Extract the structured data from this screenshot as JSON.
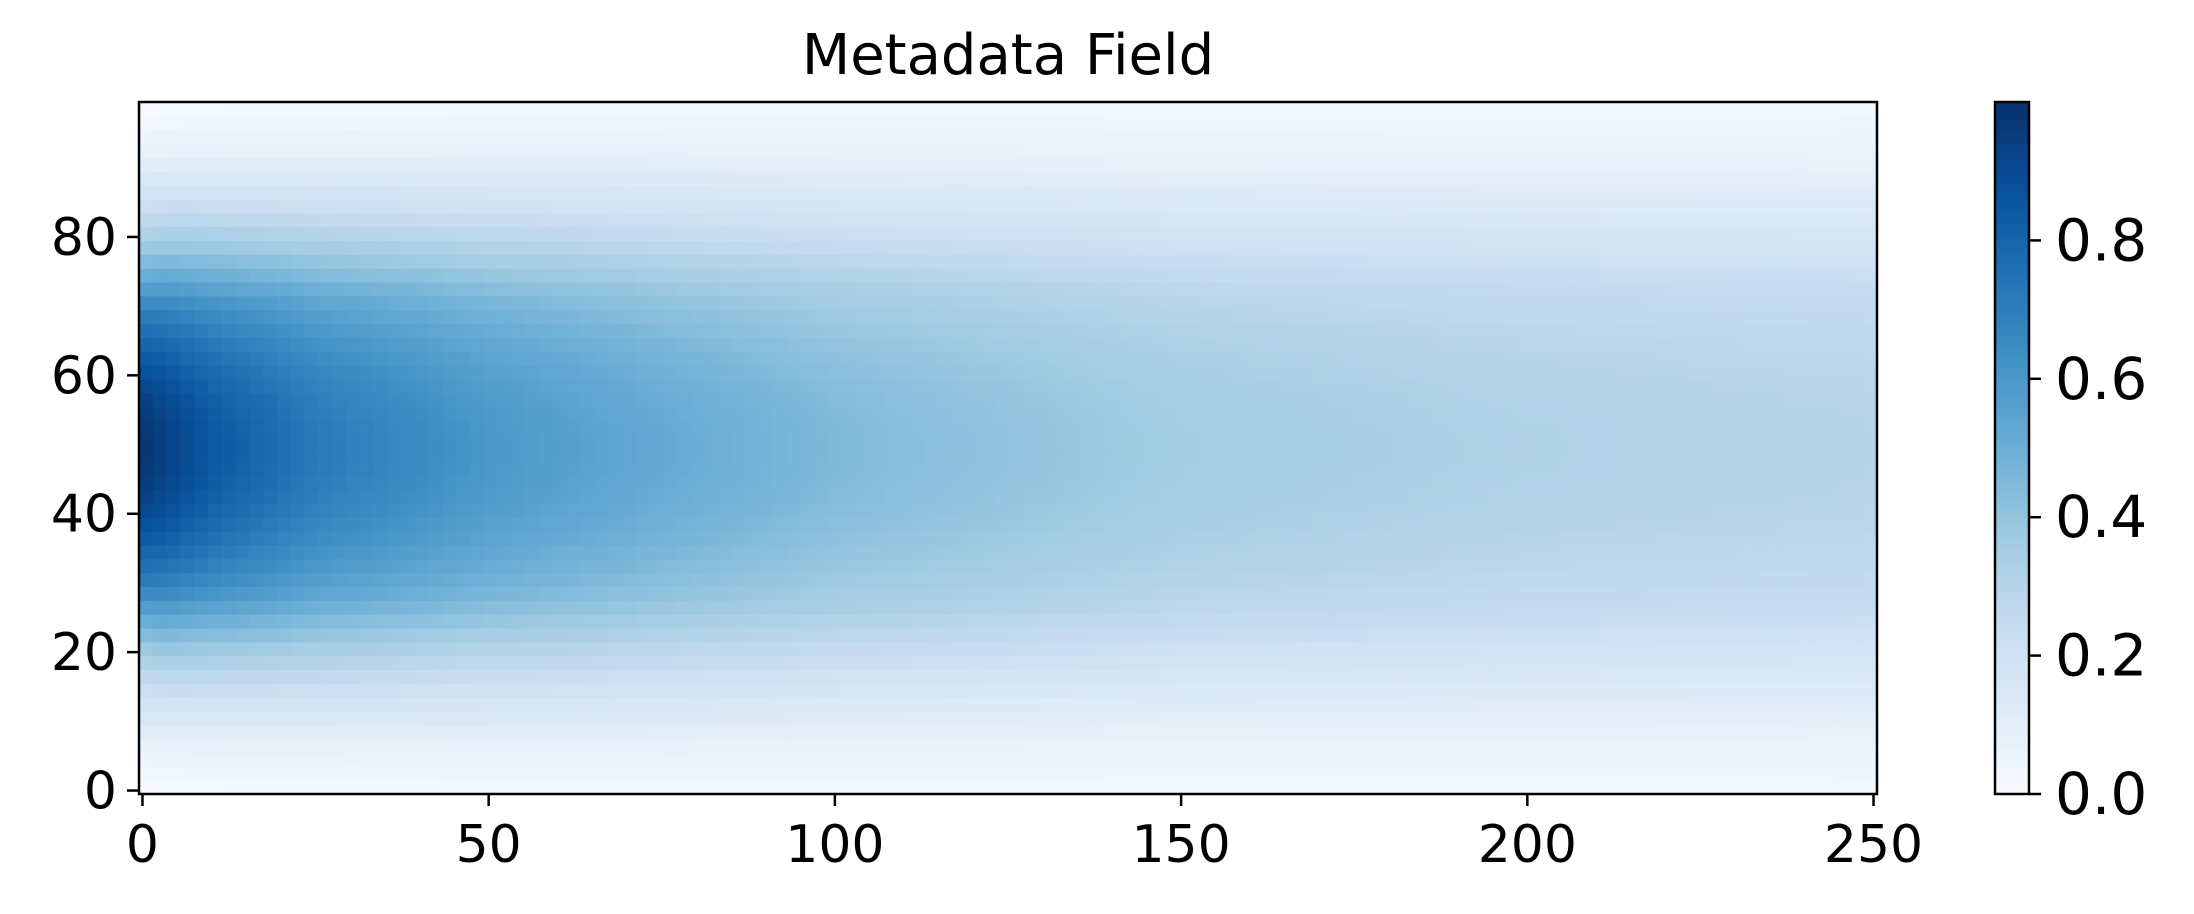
{
  "chart_data": {
    "type": "heatmap",
    "title": "Metadata Field",
    "xlabel": "",
    "ylabel": "",
    "xlim": [
      -0.5,
      250.5
    ],
    "ylim": [
      -0.5,
      99.5
    ],
    "x_ticks": [
      0,
      50,
      100,
      150,
      200,
      250
    ],
    "y_ticks": [
      0,
      20,
      40,
      60,
      80
    ],
    "x_tick_labels": [
      "0",
      "50",
      "100",
      "150",
      "200",
      "250"
    ],
    "y_tick_labels": [
      "0",
      "20",
      "40",
      "60",
      "80"
    ],
    "grid": false,
    "colormap": "Blues",
    "colorbar": {
      "range": [
        0.0,
        1.0
      ],
      "ticks": [
        0.0,
        0.2,
        0.4,
        0.6,
        0.8
      ],
      "tick_labels": [
        "0.0",
        "0.2",
        "0.4",
        "0.6",
        "0.8"
      ],
      "position": "right"
    },
    "field_description": "value peaks near 1.0 at x=0, y~50 and decays with x; centerline ~0.6 at x=50, ~0.45 at x=100, ~0.35 at x=150, ~0.32 at x=200, ~0.3 at x=250; near 0 at y=0 and y=99",
    "centerline_samples": {
      "x": [
        0,
        10,
        25,
        50,
        75,
        100,
        150,
        200,
        250
      ],
      "value": [
        0.98,
        0.85,
        0.72,
        0.6,
        0.52,
        0.45,
        0.36,
        0.32,
        0.3
      ]
    },
    "colors": {
      "cmap_stops": [
        "#f7fbff",
        "#deebf7",
        "#c6dbef",
        "#9ecae1",
        "#6baed6",
        "#4292c6",
        "#2171b5",
        "#08519c",
        "#08306b"
      ]
    }
  }
}
